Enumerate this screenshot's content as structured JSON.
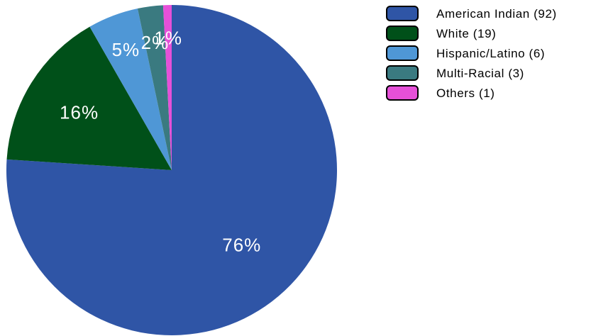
{
  "chart_data": {
    "type": "pie",
    "title": "",
    "categories": [
      "American Indian (92)",
      "White (19)",
      "Hispanic/Latino (6)",
      "Multi-Racial (3)",
      "Others (1)"
    ],
    "values": [
      92,
      19,
      6,
      3,
      1
    ],
    "percent_labels": [
      "76%",
      "16%",
      "5%",
      "2%",
      "1%"
    ],
    "colors": [
      "#2f55a6",
      "#005019",
      "#4f97d6",
      "#3a7a80",
      "#e650d8"
    ],
    "start_angle_deg": 0,
    "direction": "clockwise",
    "legend_position": "top-right"
  }
}
